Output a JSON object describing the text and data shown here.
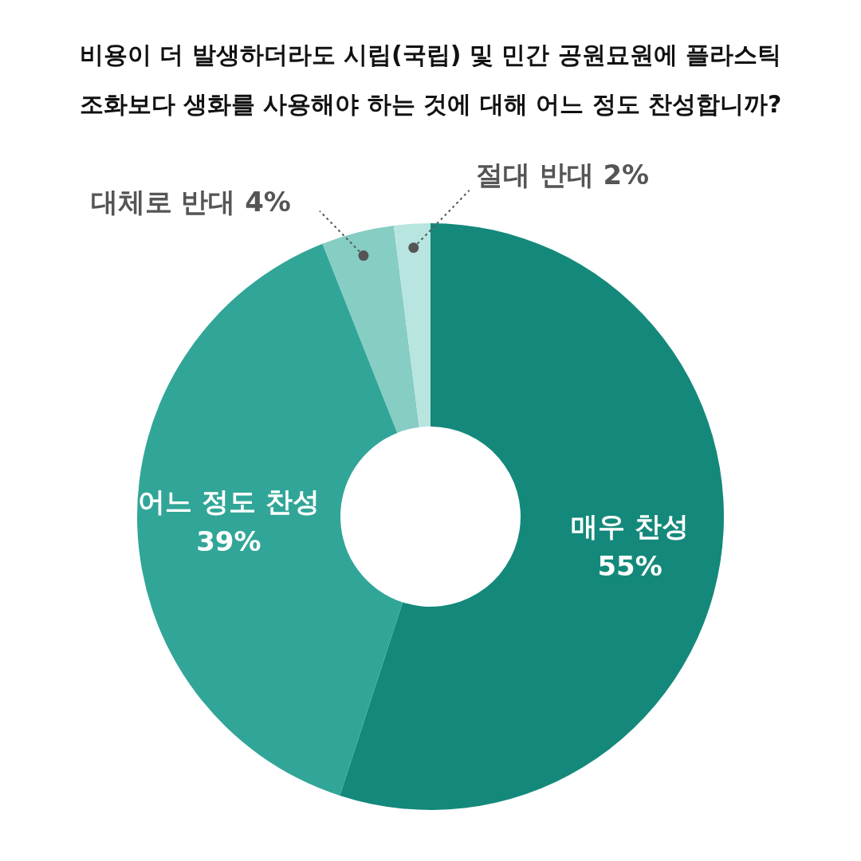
{
  "chart_data": {
    "type": "donut",
    "title": "비용이 더 발생하더라도 시립(국립) 및 민간 공원묘원에 플라스틱\n조화보다 생화를 사용해야 하는 것에 대해 어느 정도 찬성합니까?",
    "categories": [
      "매우 찬성",
      "어느 정도 찬성",
      "대체로 반대",
      "절대 반대"
    ],
    "values": [
      55,
      39,
      4,
      2
    ],
    "value_labels": [
      "55%",
      "39%",
      "4%",
      "2%"
    ],
    "colors": [
      "#14897b",
      "#31a698",
      "#86cdc4",
      "#b8e5df"
    ],
    "legend": false
  }
}
